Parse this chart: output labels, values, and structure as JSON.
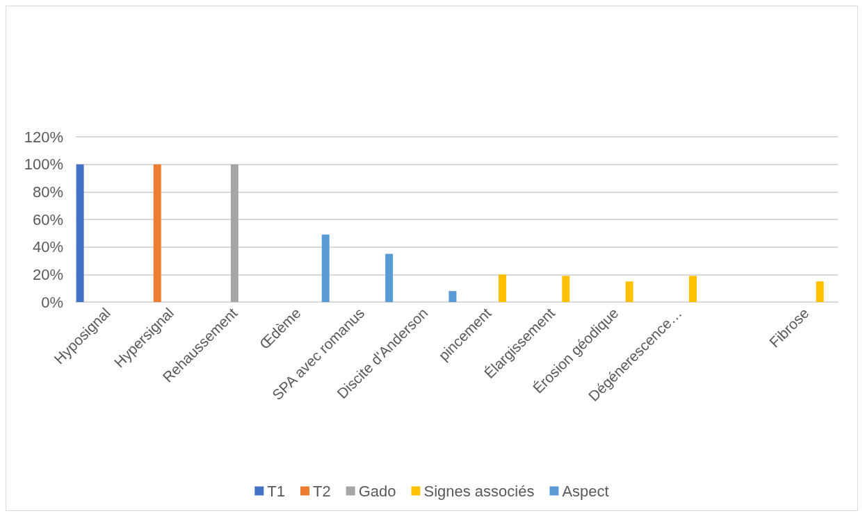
{
  "chart_data": {
    "type": "bar",
    "categories": [
      "Hyposignal",
      "Hypersignal",
      "Rehaussement",
      "Œdème",
      "SPA avec romanus",
      "Discite d'Anderson",
      "pincement",
      "Élargissement",
      "Érosion géodique",
      "Dégénerescence…",
      null,
      "Fibrose"
    ],
    "series": [
      {
        "name": "T1",
        "color": "#4472c4",
        "values": [
          100,
          null,
          null,
          null,
          null,
          null,
          null,
          null,
          null,
          null,
          null,
          null
        ]
      },
      {
        "name": "T2",
        "color": "#ed7d31",
        "values": [
          null,
          100,
          null,
          null,
          null,
          null,
          null,
          null,
          null,
          null,
          null,
          null
        ]
      },
      {
        "name": "Gado",
        "color": "#a5a5a5",
        "values": [
          null,
          null,
          100,
          null,
          null,
          null,
          null,
          null,
          null,
          null,
          null,
          null
        ]
      },
      {
        "name": "Signes associés",
        "color": "#ffc000",
        "values": [
          null,
          null,
          null,
          null,
          null,
          null,
          20,
          19,
          15,
          19,
          null,
          15
        ]
      },
      {
        "name": "Aspect",
        "color": "#5b9bd5",
        "values": [
          null,
          null,
          null,
          49,
          35,
          8,
          null,
          null,
          null,
          null,
          null,
          null
        ]
      }
    ],
    "ylim": [
      0,
      120
    ],
    "yticks": [
      {
        "value": 0,
        "label": "0%"
      },
      {
        "value": 20,
        "label": "20%"
      },
      {
        "value": 40,
        "label": "40%"
      },
      {
        "value": 60,
        "label": "60%"
      },
      {
        "value": 80,
        "label": "80%"
      },
      {
        "value": 100,
        "label": "100%"
      },
      {
        "value": 120,
        "label": "120%"
      }
    ],
    "grid": "y",
    "legend": "bottom"
  }
}
